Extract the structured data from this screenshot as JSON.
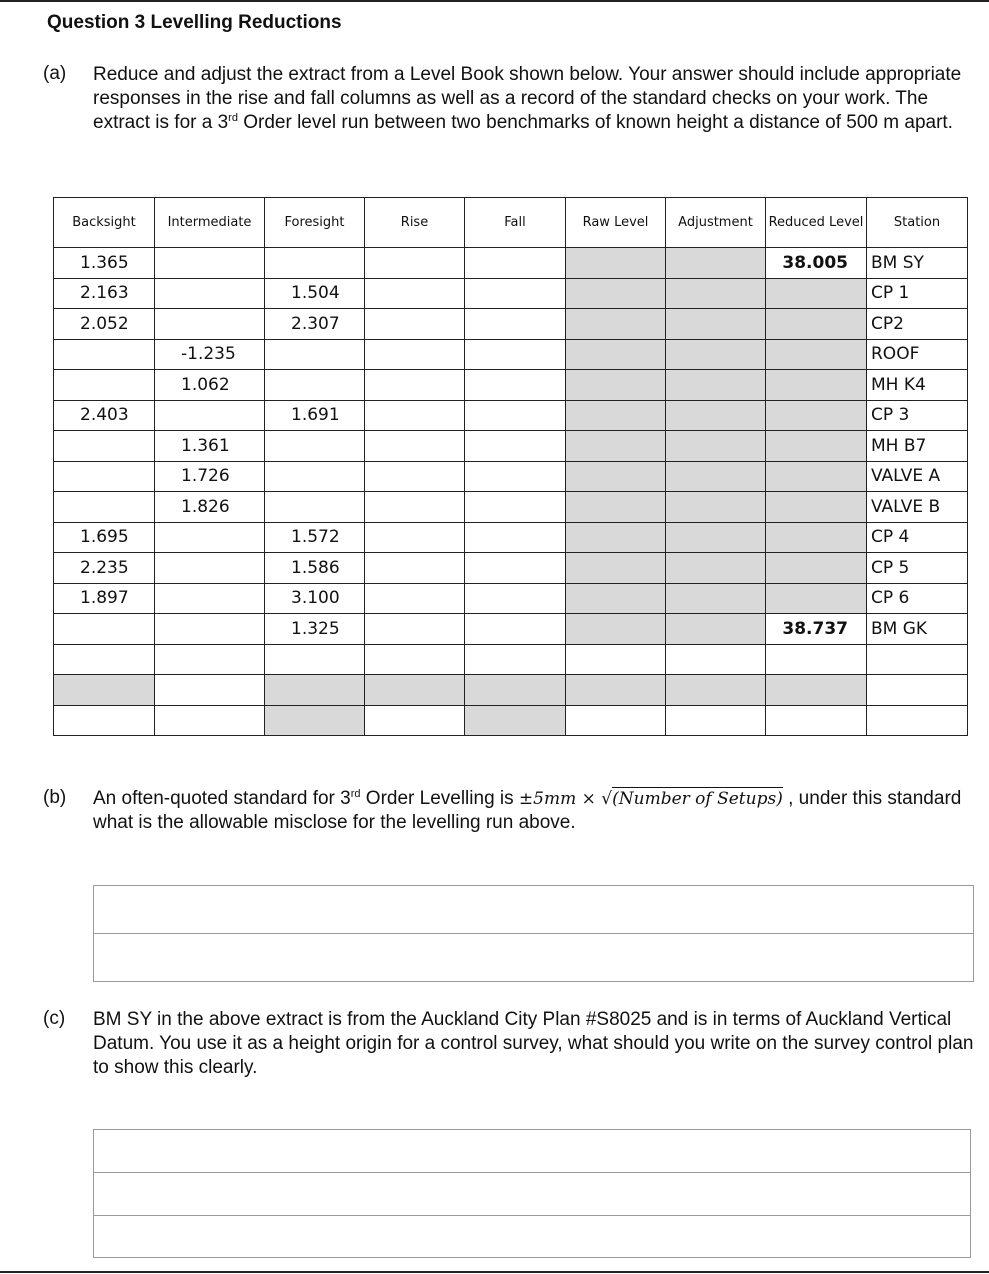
{
  "title": "Question 3 Levelling Reductions",
  "part_a": {
    "label": "(a)",
    "text_1": "Reduce and adjust the extract from a Level Book shown below. Your answer should include appropriate responses in the rise and fall columns as well as a record of the standard checks on your work.  The extract is for a 3",
    "sup": "rd",
    "text_2": " Order level run between two benchmarks of known height a distance of 500 m apart."
  },
  "table": {
    "headers": [
      "Backsight",
      "Intermediate",
      "Foresight",
      "Rise",
      "Fall",
      "Raw Level",
      "Adjustment",
      "Reduced Level",
      "Station"
    ],
    "rows": [
      {
        "bs": "1.365",
        "is": "",
        "fs": "",
        "rl": "38.005",
        "st": "BM SY"
      },
      {
        "bs": "2.163",
        "is": "",
        "fs": "1.504",
        "rl": "",
        "st": "CP 1"
      },
      {
        "bs": "2.052",
        "is": "",
        "fs": "2.307",
        "rl": "",
        "st": "CP2"
      },
      {
        "bs": "",
        "is": "-1.235",
        "fs": "",
        "rl": "",
        "st": "ROOF"
      },
      {
        "bs": "",
        "is": "1.062",
        "fs": "",
        "rl": "",
        "st": "MH K4"
      },
      {
        "bs": "2.403",
        "is": "",
        "fs": "1.691",
        "rl": "",
        "st": "CP 3"
      },
      {
        "bs": "",
        "is": "1.361",
        "fs": "",
        "rl": "",
        "st": "MH B7"
      },
      {
        "bs": "",
        "is": "1.726",
        "fs": "",
        "rl": "",
        "st": "VALVE A"
      },
      {
        "bs": "",
        "is": "1.826",
        "fs": "",
        "rl": "",
        "st": "VALVE B"
      },
      {
        "bs": "1.695",
        "is": "",
        "fs": "1.572",
        "rl": "",
        "st": "CP 4"
      },
      {
        "bs": "2.235",
        "is": "",
        "fs": "1.586",
        "rl": "",
        "st": "CP 5"
      },
      {
        "bs": "1.897",
        "is": "",
        "fs": "3.100",
        "rl": "",
        "st": "CP 6"
      },
      {
        "bs": "",
        "is": "",
        "fs": "1.325",
        "rl": "38.737",
        "st": "BM GK"
      }
    ],
    "shade_color": "#d9d9d9"
  },
  "part_b": {
    "label": "(b)",
    "text_1": "An often-quoted standard for 3",
    "sup": "rd",
    "text_2": " Order Levelling is ",
    "formula_pm": "±5mm × ",
    "formula_root": "(Number of Setups)",
    "text_3": " , under this standard what is the allowable misclose for the levelling run above."
  },
  "part_c": {
    "label": "(c)",
    "text": "BM SY in the above extract is from the Auckland City Plan #S8025 and is in terms of Auckland Vertical Datum.  You use it as a height origin for a control survey, what should you write on the survey control plan to show this clearly."
  }
}
